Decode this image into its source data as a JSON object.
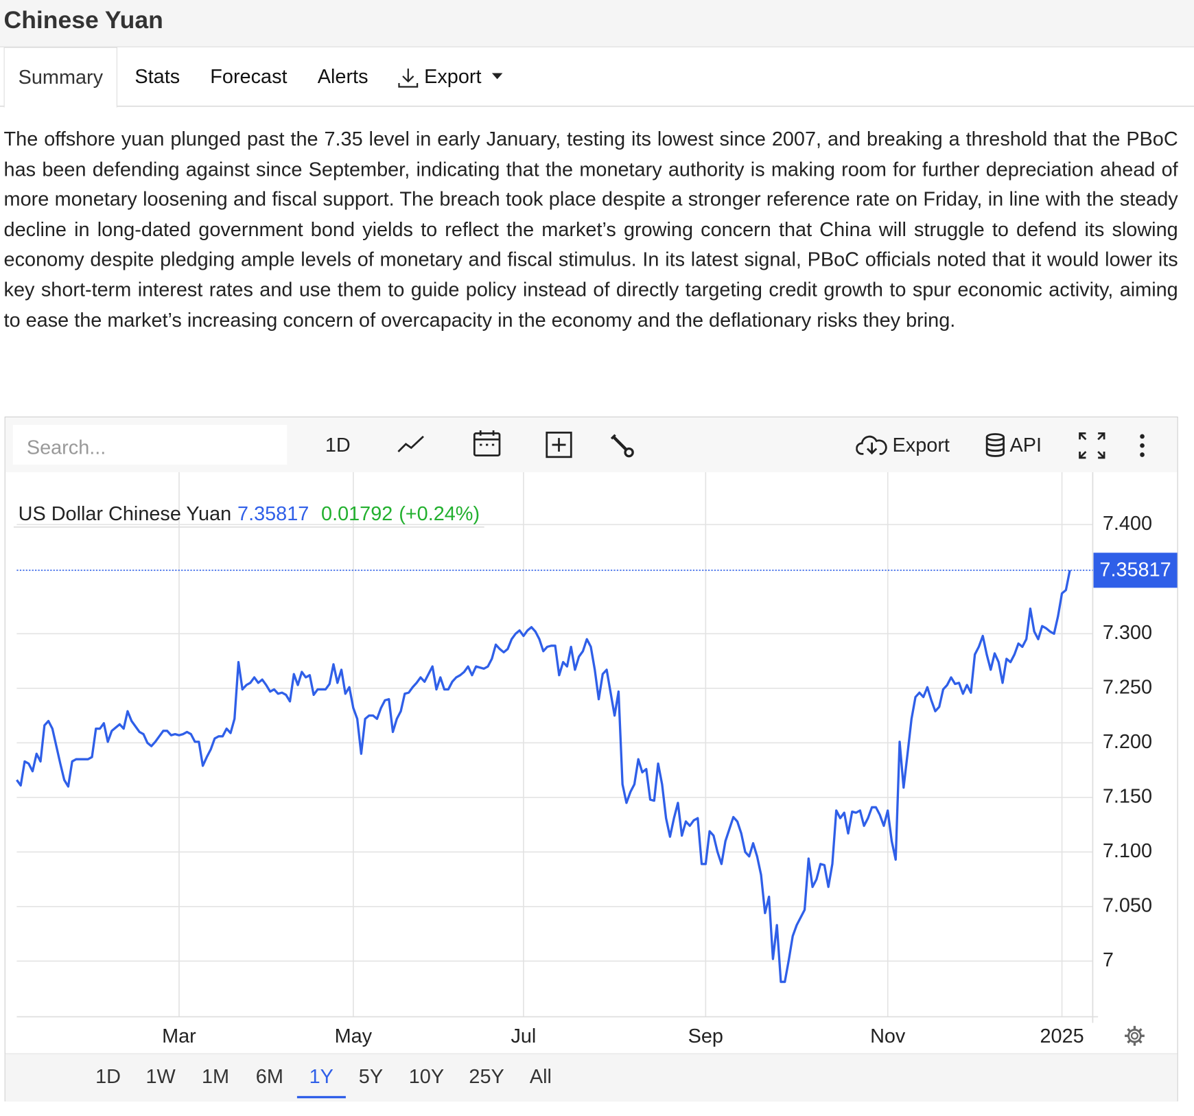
{
  "header": {
    "title": "Chinese Yuan"
  },
  "tabs": [
    "Summary",
    "Stats",
    "Forecast",
    "Alerts",
    "Export"
  ],
  "summary": "The offshore yuan plunged past the 7.35 level in early January, testing its lowest since 2007, and breaking a threshold that the PBoC has been defending against since September, indicating that the monetary authority is making room for further depreciation ahead of more monetary loosening and fiscal support. The breach took place despite a stronger reference rate on Friday, in line with the steady decline in long-dated government bond yields to reflect the market’s growing concern that China will struggle to defend its slowing economy despite pledging ample levels of monetary and fiscal stimulus. In its latest signal, PBoC officials noted that it would lower its key short-term interest rates and use them to guide policy instead of directly targeting credit growth to spur economic activity, aiming to ease the market’s increasing concern of overcapacity in the economy and the deflationary risks they bring.",
  "toolbar": {
    "search_placeholder": "Search...",
    "interval": "1D",
    "export": "Export",
    "api": "API"
  },
  "chart_data": {
    "type": "line",
    "grid": true,
    "change": 0.01792,
    "change_percent": {
      "value": 0.24,
      "label": "(+0.24%)"
    },
    "change_color": "#22b02e",
    "ylim": [
      6.949,
      7.448
    ],
    "yticks": [
      {
        "value": 7.4,
        "label": "7.400"
      },
      {
        "value": 7.3,
        "label": "7.300"
      },
      {
        "value": 7.25,
        "label": "7.250"
      },
      {
        "value": 7.2,
        "label": "7.200"
      },
      {
        "value": 7.15,
        "label": "7.150"
      },
      {
        "value": 7.1,
        "label": "7.100"
      },
      {
        "value": 7.05,
        "label": "7.050"
      },
      7
    ],
    "categories": [
      null,
      null,
      null,
      null,
      null,
      null,
      null,
      null,
      null,
      null,
      null,
      null,
      null,
      null,
      null,
      null,
      null,
      null,
      null,
      null,
      null,
      null,
      null,
      null,
      null,
      null,
      null,
      null,
      null,
      null,
      null,
      null,
      null,
      null,
      null,
      null,
      null,
      null,
      null,
      null,
      null,
      "Mar",
      null,
      null,
      null,
      null,
      null,
      null,
      null,
      null,
      null,
      null,
      null,
      null,
      null,
      null,
      null,
      null,
      null,
      null,
      null,
      null,
      null,
      null,
      null,
      null,
      null,
      null,
      null,
      null,
      null,
      null,
      null,
      null,
      null,
      null,
      null,
      null,
      null,
      null,
      null,
      null,
      null,
      null,
      null,
      "May",
      null,
      null,
      null,
      null,
      null,
      null,
      null,
      null,
      null,
      null,
      null,
      null,
      null,
      null,
      null,
      null,
      null,
      null,
      null,
      null,
      null,
      null,
      null,
      null,
      null,
      null,
      null,
      null,
      null,
      null,
      null,
      null,
      null,
      null,
      null,
      null,
      null,
      null,
      null,
      null,
      null,
      null,
      "Jul",
      null,
      null,
      null,
      null,
      null,
      null,
      null,
      null,
      null,
      null,
      null,
      null,
      null,
      null,
      null,
      null,
      null,
      null,
      null,
      null,
      null,
      null,
      null,
      null,
      null,
      null,
      null,
      null,
      null,
      null,
      null,
      null,
      null,
      null,
      null,
      null,
      null,
      null,
      null,
      null,
      null,
      null,
      null,
      null,
      null,
      "Sep",
      null,
      null,
      null,
      null,
      null,
      null,
      null,
      null,
      null,
      null,
      null,
      null,
      null,
      null,
      null,
      null,
      null,
      null,
      null,
      null,
      null,
      null,
      null,
      null,
      null,
      null,
      null,
      null,
      null,
      null,
      null,
      null,
      null,
      null,
      null,
      null,
      null,
      null,
      null,
      null,
      null,
      null,
      null,
      null,
      null,
      "Nov",
      null,
      null,
      null,
      null,
      null,
      null,
      null,
      null,
      null,
      null,
      null,
      null,
      null,
      null,
      null,
      null,
      null,
      null,
      null,
      null,
      null,
      null,
      null,
      null,
      null,
      null,
      null,
      null,
      null,
      null,
      null,
      null,
      null,
      null,
      null,
      null,
      null,
      null,
      null,
      null,
      null,
      null,
      null,
      "2025",
      null,
      null
    ],
    "series": [
      {
        "name": "US Dollar Chinese Yuan",
        "color": "#2f5fe8",
        "values": [
          7.166,
          7.161,
          7.183,
          7.181,
          7.174,
          7.19,
          7.183,
          7.216,
          7.22,
          7.213,
          7.197,
          7.181,
          7.166,
          7.16,
          7.183,
          7.185,
          7.185,
          7.185,
          7.185,
          7.187,
          7.213,
          7.213,
          7.218,
          7.201,
          7.211,
          7.214,
          7.217,
          7.213,
          7.229,
          7.22,
          7.215,
          7.21,
          7.208,
          7.2,
          7.197,
          7.201,
          7.206,
          7.211,
          7.211,
          7.207,
          7.208,
          7.207,
          7.208,
          7.21,
          7.208,
          7.201,
          7.201,
          7.179,
          7.187,
          7.194,
          7.204,
          7.206,
          7.206,
          7.213,
          7.209,
          7.222,
          7.274,
          7.249,
          7.253,
          7.255,
          7.26,
          7.255,
          7.258,
          7.253,
          7.247,
          7.249,
          7.245,
          7.246,
          7.244,
          7.238,
          7.263,
          7.253,
          7.265,
          7.26,
          7.262,
          7.244,
          7.249,
          7.249,
          7.249,
          7.254,
          7.272,
          7.255,
          7.267,
          7.245,
          7.251,
          7.232,
          7.222,
          7.19,
          7.222,
          7.225,
          7.225,
          7.222,
          7.232,
          7.239,
          7.24,
          7.21,
          7.222,
          7.229,
          7.245,
          7.246,
          7.251,
          7.255,
          7.26,
          7.256,
          7.263,
          7.27,
          7.249,
          7.26,
          7.249,
          7.249,
          7.256,
          7.26,
          7.262,
          7.265,
          7.27,
          7.262,
          7.27,
          7.269,
          7.268,
          7.27,
          7.277,
          7.29,
          7.286,
          7.283,
          7.286,
          7.295,
          7.3,
          7.303,
          7.298,
          7.303,
          7.306,
          7.302,
          7.295,
          7.284,
          7.288,
          7.289,
          7.289,
          7.262,
          7.274,
          7.27,
          7.288,
          7.267,
          7.279,
          7.284,
          7.295,
          7.288,
          7.267,
          7.24,
          7.263,
          7.267,
          7.246,
          7.225,
          7.247,
          7.162,
          7.145,
          7.155,
          7.162,
          7.185,
          7.173,
          7.176,
          7.148,
          7.147,
          7.181,
          7.162,
          7.131,
          7.114,
          7.131,
          7.145,
          7.115,
          7.128,
          7.124,
          7.129,
          7.131,
          7.089,
          7.089,
          7.119,
          7.115,
          7.1,
          7.089,
          7.11,
          7.121,
          7.132,
          7.128,
          7.117,
          7.1,
          7.096,
          7.108,
          7.096,
          7.079,
          7.044,
          7.059,
          7.002,
          7.033,
          6.981,
          6.981,
          7.001,
          7.023,
          7.033,
          7.04,
          7.047,
          7.094,
          7.068,
          7.075,
          7.089,
          7.088,
          7.068,
          7.089,
          7.138,
          7.131,
          7.136,
          7.117,
          7.137,
          7.136,
          7.138,
          7.124,
          7.131,
          7.141,
          7.141,
          7.134,
          7.124,
          7.138,
          7.11,
          7.093,
          7.201,
          7.159,
          7.19,
          7.222,
          7.242,
          7.246,
          7.242,
          7.251,
          7.239,
          7.229,
          7.233,
          7.249,
          7.253,
          7.26,
          7.254,
          7.255,
          7.245,
          7.253,
          7.246,
          7.281,
          7.288,
          7.298,
          7.281,
          7.267,
          7.282,
          7.274,
          7.255,
          7.277,
          7.274,
          7.281,
          7.291,
          7.288,
          7.295,
          7.323,
          7.302,
          7.295,
          7.307,
          7.305,
          7.302,
          7.3,
          7.316,
          7.337,
          7.34,
          7.35817
        ]
      }
    ]
  },
  "range_buttons": [
    "1D",
    "1W",
    "1M",
    "6M",
    "1Y",
    "5Y",
    "10Y",
    "25Y",
    "All"
  ],
  "active_range": "1Y"
}
